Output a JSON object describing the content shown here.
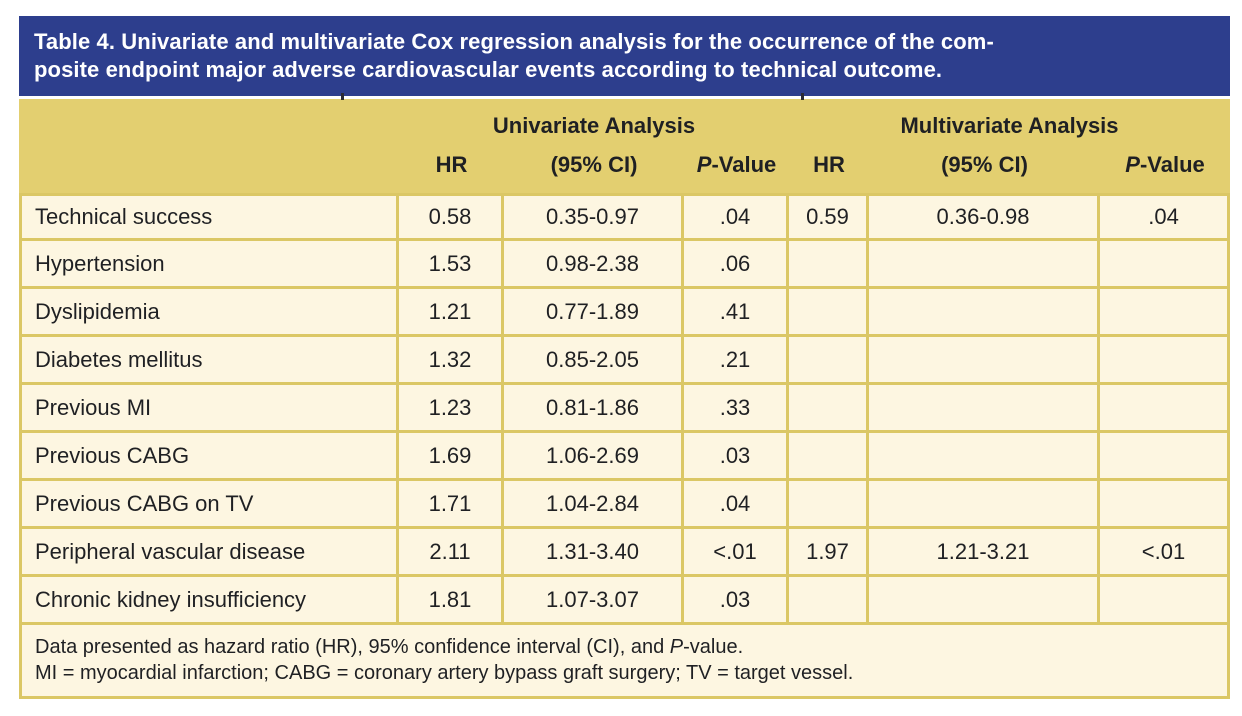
{
  "title": {
    "lines": [
      "Table 4. Univariate and multivariate Cox regression analysis for the occurrence of the com-",
      "posite endpoint major adverse cardiovascular events according to technical outcome."
    ]
  },
  "table": {
    "group_headers": [
      "Univariate Analysis",
      "Multivariate Analysis"
    ],
    "sub_headers": {
      "hr": "HR",
      "ci": "(95% CI)",
      "p_italic": "P",
      "p_rest": "-Value"
    },
    "rows": [
      {
        "label": "Technical success",
        "u_hr": "0.58",
        "u_ci": "0.35-0.97",
        "u_p": ".04",
        "m_hr": "0.59",
        "m_ci": "0.36-0.98",
        "m_p": ".04"
      },
      {
        "label": "Hypertension",
        "u_hr": "1.53",
        "u_ci": "0.98-2.38",
        "u_p": ".06",
        "m_hr": "",
        "m_ci": "",
        "m_p": ""
      },
      {
        "label": "Dyslipidemia",
        "u_hr": "1.21",
        "u_ci": "0.77-1.89",
        "u_p": ".41",
        "m_hr": "",
        "m_ci": "",
        "m_p": ""
      },
      {
        "label": "Diabetes mellitus",
        "u_hr": "1.32",
        "u_ci": "0.85-2.05",
        "u_p": ".21",
        "m_hr": "",
        "m_ci": "",
        "m_p": ""
      },
      {
        "label": "Previous MI",
        "u_hr": "1.23",
        "u_ci": "0.81-1.86",
        "u_p": ".33",
        "m_hr": "",
        "m_ci": "",
        "m_p": ""
      },
      {
        "label": "Previous CABG",
        "u_hr": "1.69",
        "u_ci": "1.06-2.69",
        "u_p": ".03",
        "m_hr": "",
        "m_ci": "",
        "m_p": ""
      },
      {
        "label": "Previous CABG on TV",
        "u_hr": "1.71",
        "u_ci": "1.04-2.84",
        "u_p": ".04",
        "m_hr": "",
        "m_ci": "",
        "m_p": ""
      },
      {
        "label": "Peripheral vascular disease",
        "u_hr": "2.11",
        "u_ci": "1.31-3.40",
        "u_p": "<.01",
        "m_hr": "1.97",
        "m_ci": "1.21-3.21",
        "m_p": "<.01"
      },
      {
        "label": "Chronic kidney insufficiency",
        "u_hr": "1.81",
        "u_ci": "1.07-3.07",
        "u_p": ".03",
        "m_hr": "",
        "m_ci": "",
        "m_p": ""
      }
    ],
    "footnotes": {
      "line1_pre": "Data presented as hazard ratio (HR), 95% confidence interval (CI), and ",
      "line1_italic": "P",
      "line1_post": "-value.",
      "line2": "MI = myocardial infarction; CABG = coronary artery bypass graft surgery; TV = target vessel."
    }
  },
  "colors": {
    "title_bar_bg": "#2d3e8d",
    "title_text": "#ffffff",
    "header_bg": "#e3cf70",
    "body_bg": "#fdf6e1",
    "border": "#dbc765",
    "text": "#1f2023"
  }
}
